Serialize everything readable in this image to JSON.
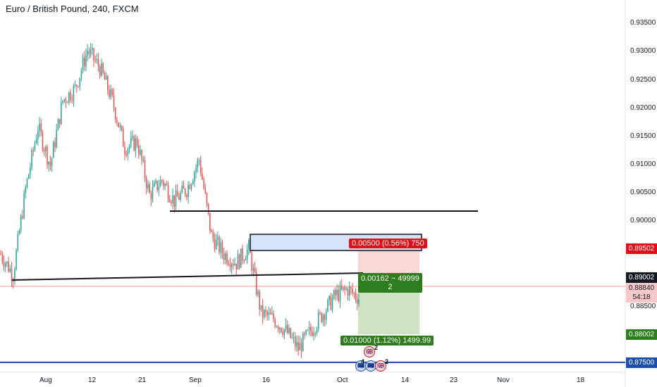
{
  "header": {
    "title": "Euro / British Pound, 240, FXCM"
  },
  "colors": {
    "up": "#26a69a",
    "down": "#ef5350",
    "stop_zone": "#f8c9c9",
    "target_zone": "#c5dcb5",
    "box_fill": "#d6e4fb",
    "trendline": "#131722",
    "support_line": "#1e4fa8",
    "red_tag": "#e0101a",
    "green_tag": "#2e7d1e",
    "dark_tag": "#131722",
    "pink_tag": "#f7c8c8"
  },
  "axis": {
    "price_ticks": [
      "0.93500",
      "0.93000",
      "0.92500",
      "0.92000",
      "0.91500",
      "0.91000",
      "0.90500",
      "0.90000",
      "0.88500"
    ],
    "time_ticks": [
      "Aug",
      "12",
      "21",
      "Sep",
      "16",
      "Oct",
      "14",
      "23",
      "Nov",
      "18"
    ]
  },
  "price_tags": {
    "stop": "0.89502",
    "entry": "0.89002",
    "current": "0.88840",
    "countdown": "54:18",
    "target": "0.88002",
    "support": "0.87500"
  },
  "trade": {
    "stop_label": "0.00500 (0.56%) 750",
    "ratio_line1": "0.00162 ~ 49999",
    "ratio_line2": "2",
    "target_label": "0.01000 (1.12%) 1499.99"
  },
  "events": {
    "count_a": "2",
    "count_b": "4",
    "count_c": "2"
  },
  "chart_data": {
    "type": "candlestick",
    "title": "Euro / British Pound, 240, FXCM",
    "ylim": [
      0.8735,
      0.939
    ],
    "y_ticks": [
      0.935,
      0.93,
      0.925,
      0.92,
      0.915,
      0.91,
      0.905,
      0.9,
      0.885
    ],
    "x_ticks": [
      "Aug",
      "12",
      "21",
      "Sep",
      "16",
      "Oct",
      "14",
      "23",
      "Nov",
      "18"
    ],
    "price_path": [
      {
        "x": "Jul 29",
        "y": 0.896
      },
      {
        "x": "Jul 31",
        "y": 0.8925
      },
      {
        "x": "Aug 2",
        "y": 0.907
      },
      {
        "x": "Aug 4",
        "y": 0.9175
      },
      {
        "x": "Aug 6",
        "y": 0.911
      },
      {
        "x": "Aug 8",
        "y": 0.922
      },
      {
        "x": "Aug 10",
        "y": 0.924
      },
      {
        "x": "Aug 12",
        "y": 0.9305
      },
      {
        "x": "Aug 14",
        "y": 0.9275
      },
      {
        "x": "Aug 16",
        "y": 0.922
      },
      {
        "x": "Aug 18",
        "y": 0.914
      },
      {
        "x": "Aug 20",
        "y": 0.915
      },
      {
        "x": "Aug 22",
        "y": 0.906
      },
      {
        "x": "Aug 24",
        "y": 0.9085
      },
      {
        "x": "Aug 27",
        "y": 0.905
      },
      {
        "x": "Aug 30",
        "y": 0.907
      },
      {
        "x": "Sep 2",
        "y": 0.912
      },
      {
        "x": "Sep 5",
        "y": 0.899
      },
      {
        "x": "Sep 8",
        "y": 0.896
      },
      {
        "x": "Sep 11",
        "y": 0.8945
      },
      {
        "x": "Sep 13",
        "y": 0.897
      },
      {
        "x": "Sep 15",
        "y": 0.886
      },
      {
        "x": "Sep 17",
        "y": 0.885
      },
      {
        "x": "Sep 20",
        "y": 0.883
      },
      {
        "x": "Sep 23",
        "y": 0.88
      },
      {
        "x": "Sep 26",
        "y": 0.883
      },
      {
        "x": "Sep 29",
        "y": 0.886
      },
      {
        "x": "Oct 1",
        "y": 0.889
      },
      {
        "x": "Oct 3",
        "y": 0.89
      },
      {
        "x": "Oct 5",
        "y": 0.8884
      }
    ],
    "annotations": {
      "resistance_level": 0.9017,
      "trendline_from": {
        "x": "Jul 31",
        "y": 0.8894
      },
      "trendline_to": {
        "x": "Oct 5",
        "y": 0.8901
      },
      "supply_box": {
        "from": 0.8947,
        "to": 0.8972
      },
      "support_level": 0.875,
      "entry": 0.89002,
      "stop": 0.89502,
      "target": 0.88002,
      "current": 0.8884
    }
  }
}
